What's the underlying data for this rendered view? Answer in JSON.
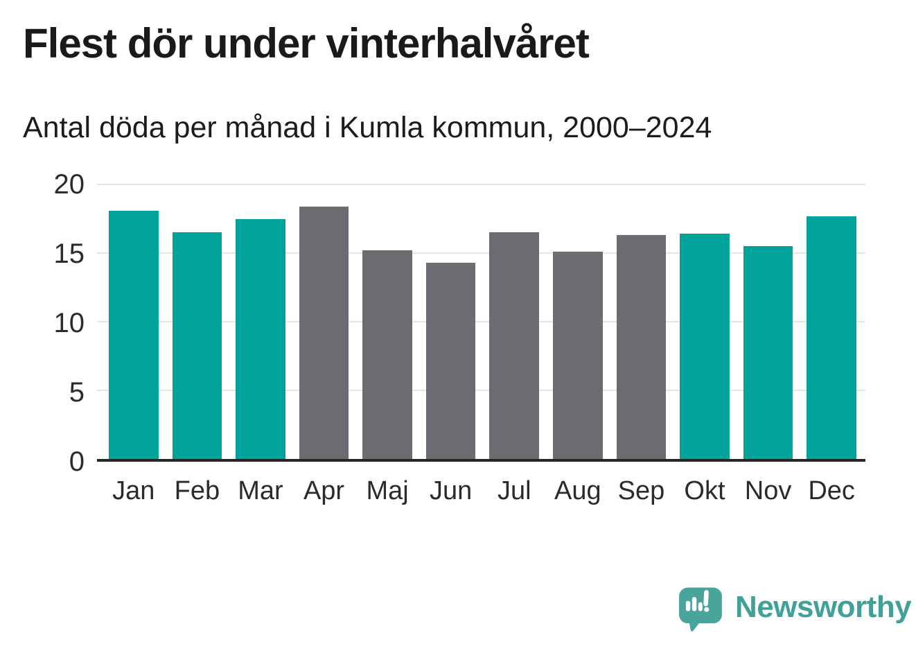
{
  "header": {
    "title": "Flest dör under vinterhalvåret",
    "subtitle": "Antal döda per månad i Kumla kommun, 2000–2024"
  },
  "chart_data": {
    "type": "bar",
    "title": "Flest dör under vinterhalvåret",
    "subtitle": "Antal döda per månad i Kumla kommun, 2000–2024",
    "categories": [
      "Jan",
      "Feb",
      "Mar",
      "Apr",
      "Maj",
      "Jun",
      "Jul",
      "Aug",
      "Sep",
      "Okt",
      "Nov",
      "Dec"
    ],
    "values": [
      18.1,
      16.5,
      17.5,
      18.4,
      15.2,
      14.3,
      16.5,
      15.1,
      16.3,
      16.4,
      15.5,
      17.7
    ],
    "bar_colors": [
      "#00a39a",
      "#00a39a",
      "#00a39a",
      "#6d6a72",
      "#6d6a72",
      "#6d6a72",
      "#6d6a72",
      "#6d6a72",
      "#6d6a72",
      "#00a39a",
      "#00a39a",
      "#00a39a"
    ],
    "highlight_color": "#00a39a",
    "base_color": "#6d6a72",
    "xlabel": "",
    "ylabel": "",
    "ylim": [
      0,
      20
    ],
    "yticks": [
      20,
      15,
      10,
      5,
      0
    ],
    "grid": true,
    "gridline_color": "#e4e4e4",
    "axis_line_color": "#252525",
    "legend": false
  },
  "footer": {
    "brand": "Newsworthy",
    "brand_color": "#40a198",
    "logo_bubble_color": "#49a59c"
  }
}
